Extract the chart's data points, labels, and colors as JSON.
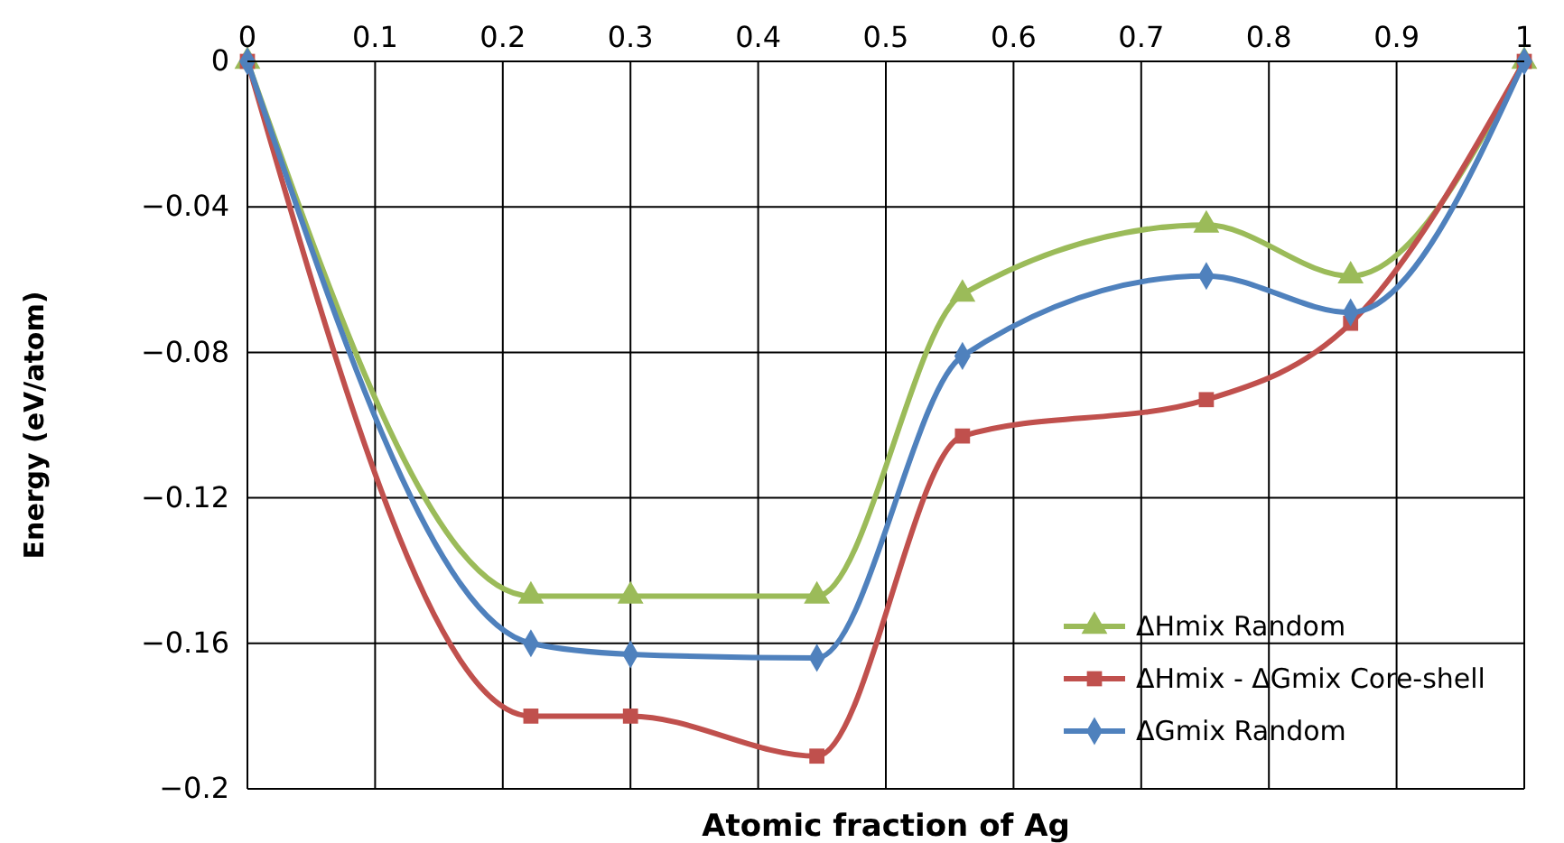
{
  "chart_data": {
    "type": "line",
    "xlabel": "Atomic fraction of Ag",
    "ylabel": "Energy (eV/atom)",
    "x": [
      0,
      0.222,
      0.3,
      0.446,
      0.56,
      0.751,
      0.864,
      1
    ],
    "xlim": [
      0,
      1
    ],
    "xticks": [
      0,
      0.1,
      0.2,
      0.3,
      0.4,
      0.5,
      0.6,
      0.7,
      0.8,
      0.9,
      1
    ],
    "ylim": [
      -0.2,
      0
    ],
    "yticks": [
      {
        "value": 0,
        "label": "0"
      },
      {
        "value": -0.04,
        "label": "−0.04"
      },
      {
        "value": -0.08,
        "label": "−0.08"
      },
      {
        "value": -0.12,
        "label": "−0.12"
      },
      {
        "value": -0.16,
        "label": "−0.16"
      },
      {
        "value": -0.2,
        "label": "−0.2"
      }
    ],
    "grid": true,
    "legend": "bottom right",
    "line_style": "solid",
    "series": [
      {
        "name": "ΔHmix Random",
        "color": "#9bbb59",
        "marker": "triangle",
        "values": [
          0,
          -0.147,
          -0.147,
          -0.147,
          -0.064,
          -0.045,
          -0.059,
          0
        ]
      },
      {
        "name": "ΔHmix - ΔGmix Core-shell",
        "color": "#c0504d",
        "marker": "square",
        "values": [
          0,
          -0.18,
          -0.18,
          -0.191,
          -0.103,
          -0.093,
          -0.072,
          0
        ]
      },
      {
        "name": "ΔGmix Random",
        "color": "#4f81bd",
        "marker": "diamond",
        "values": [
          0,
          -0.16,
          -0.163,
          -0.164,
          -0.081,
          -0.059,
          -0.069,
          0
        ]
      }
    ]
  }
}
